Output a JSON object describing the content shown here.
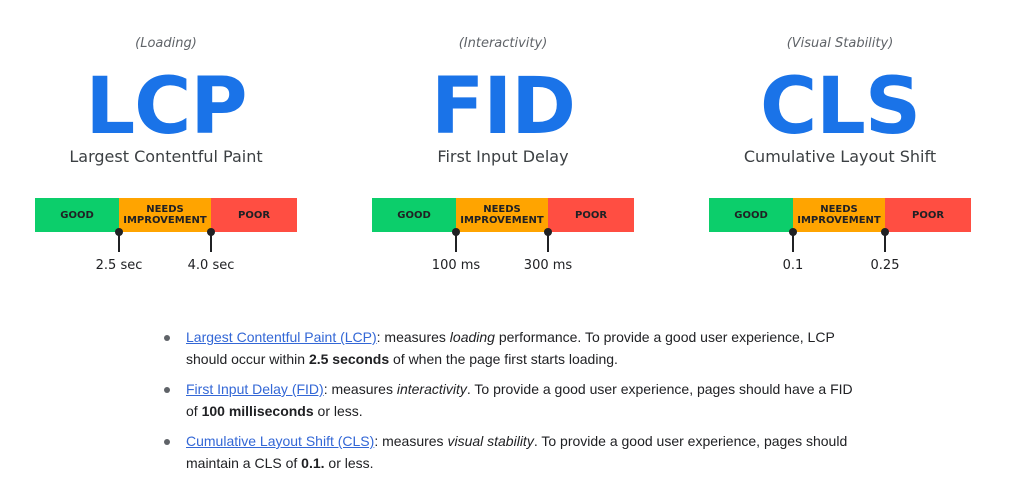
{
  "metrics": [
    {
      "category": "(Loading)",
      "abbr": "LCP",
      "name": "Largest Contentful Paint",
      "segments": [
        "GOOD",
        "NEEDS IMPROVEMENT",
        "POOR"
      ],
      "thresholds": [
        "2.5 sec",
        "4.0 sec"
      ]
    },
    {
      "category": "(Interactivity)",
      "abbr": "FID",
      "name": "First Input Delay",
      "segments": [
        "GOOD",
        "NEEDS IMPROVEMENT",
        "POOR"
      ],
      "thresholds": [
        "100 ms",
        "300 ms"
      ]
    },
    {
      "category": "(Visual Stability)",
      "abbr": "CLS",
      "name": "Cumulative Layout Shift",
      "segments": [
        "GOOD",
        "NEEDS IMPROVEMENT",
        "POOR"
      ],
      "thresholds": [
        "0.1",
        "0.25"
      ]
    }
  ],
  "notes": [
    {
      "link": "Largest Contentful Paint (LCP)",
      "t1": ": measures ",
      "em": "loading",
      "t2": " performance. To provide a good user experience, LCP should occur within ",
      "strong": "2.5 seconds",
      "t3": " of when the page first starts loading."
    },
    {
      "link": "First Input Delay (FID)",
      "t1": ": measures ",
      "em": "interactivity",
      "t2": ". To provide a good user experience, pages should have a FID of ",
      "strong": "100 milliseconds",
      "t3": " or less."
    },
    {
      "link": "Cumulative Layout Shift (CLS)",
      "t1": ": measures ",
      "em": "visual stability",
      "t2": ". To provide a good user experience, pages should maintain a CLS of ",
      "strong": "0.1.",
      "t3": " or less."
    }
  ],
  "colors": {
    "good": "#0cce6b",
    "needs_improvement": "#ffa400",
    "poor": "#ff4e42",
    "accent": "#1a73e8",
    "link": "#3367d6"
  }
}
